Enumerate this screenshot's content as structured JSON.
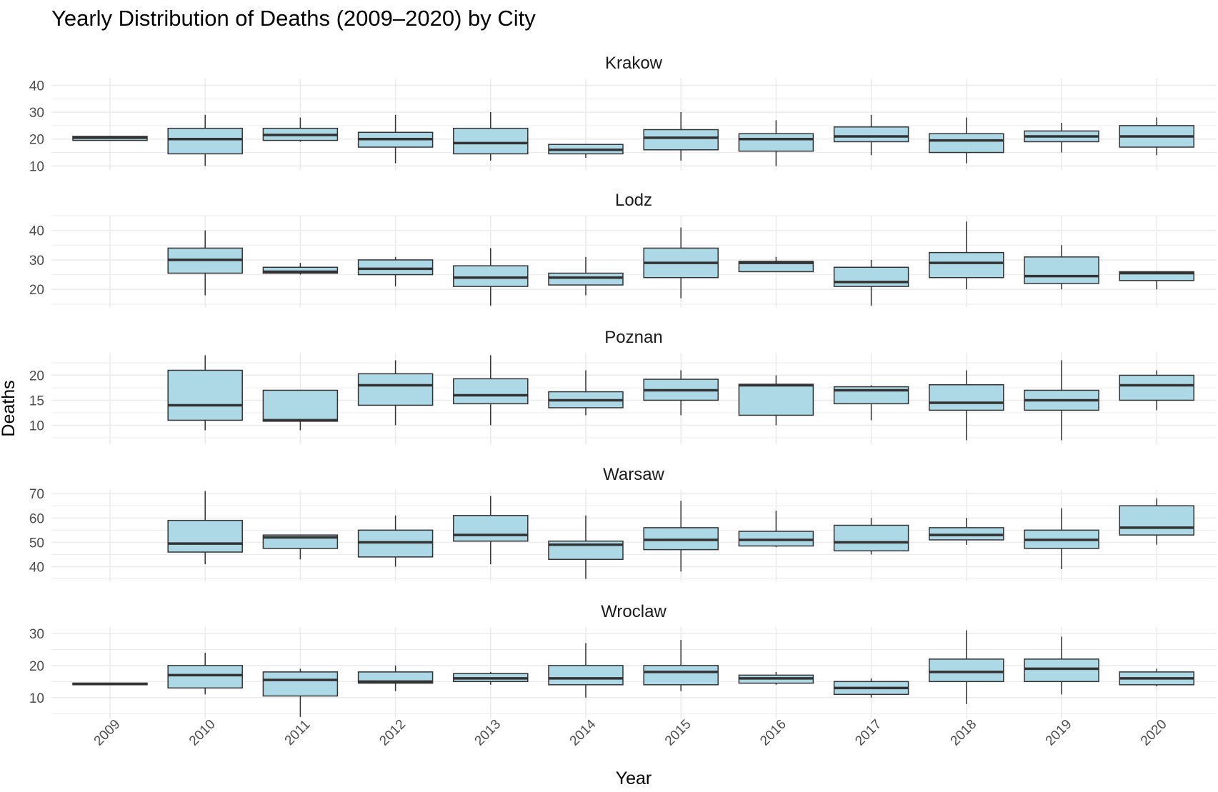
{
  "chart_data": {
    "type": "boxplot",
    "title": "Yearly Distribution of Deaths (2009–2020) by City",
    "xlabel": "Year",
    "ylabel": "Deaths",
    "categories": [
      "2009",
      "2010",
      "2011",
      "2012",
      "2013",
      "2014",
      "2015",
      "2016",
      "2017",
      "2018",
      "2019",
      "2020"
    ],
    "colors": {
      "box_fill": "#add8e6",
      "box_stroke": "#333333",
      "grid": "#ebebeb"
    },
    "grid": true,
    "facets": [
      {
        "name": "Krakow",
        "ylim": [
          8.5,
          42.5
        ],
        "yticks": [
          10,
          20,
          30,
          40
        ],
        "boxes": [
          {
            "year": "2009",
            "min": 19.5,
            "q1": 19.5,
            "median": 20.5,
            "q3": 21,
            "max": 21
          },
          {
            "year": "2010",
            "min": 10,
            "q1": 14.5,
            "median": 20,
            "q3": 24,
            "max": 29
          },
          {
            "year": "2011",
            "min": 19,
            "q1": 19.5,
            "median": 21.5,
            "q3": 24,
            "max": 28
          },
          {
            "year": "2012",
            "min": 11,
            "q1": 17,
            "median": 20,
            "q3": 22.5,
            "max": 29
          },
          {
            "year": "2013",
            "min": 12,
            "q1": 14.5,
            "median": 18.5,
            "q3": 24,
            "max": 30
          },
          {
            "year": "2014",
            "min": 13,
            "q1": 14.5,
            "median": 16,
            "q3": 18,
            "max": 18
          },
          {
            "year": "2015",
            "min": 12,
            "q1": 16,
            "median": 20.5,
            "q3": 23.5,
            "max": 30
          },
          {
            "year": "2016",
            "min": 10,
            "q1": 15.5,
            "median": 20,
            "q3": 22,
            "max": 27
          },
          {
            "year": "2017",
            "min": 14,
            "q1": 19,
            "median": 21,
            "q3": 24.5,
            "max": 29
          },
          {
            "year": "2018",
            "min": 11,
            "q1": 15,
            "median": 19.5,
            "q3": 22,
            "max": 28
          },
          {
            "year": "2019",
            "min": 15,
            "q1": 19,
            "median": 21,
            "q3": 23,
            "max": 26
          },
          {
            "year": "2020",
            "min": 14,
            "q1": 17,
            "median": 21,
            "q3": 25,
            "max": 28
          }
        ]
      },
      {
        "name": "Lodz",
        "ylim": [
          14,
          45
        ],
        "yticks": [
          20,
          30,
          40
        ],
        "boxes": [
          {
            "year": "2010",
            "min": 18,
            "q1": 25.5,
            "median": 30,
            "q3": 34,
            "max": 40
          },
          {
            "year": "2011",
            "min": 25,
            "q1": 25.5,
            "median": 26,
            "q3": 27.5,
            "max": 29
          },
          {
            "year": "2012",
            "min": 21,
            "q1": 25,
            "median": 27,
            "q3": 30,
            "max": 31
          },
          {
            "year": "2013",
            "min": 14.5,
            "q1": 21,
            "median": 24,
            "q3": 28,
            "max": 34
          },
          {
            "year": "2014",
            "min": 18,
            "q1": 21.5,
            "median": 24,
            "q3": 25.5,
            "max": 31
          },
          {
            "year": "2015",
            "min": 17,
            "q1": 24,
            "median": 29,
            "q3": 34,
            "max": 41
          },
          {
            "year": "2016",
            "min": 26,
            "q1": 26,
            "median": 29,
            "q3": 29.5,
            "max": 31
          },
          {
            "year": "2017",
            "min": 14.5,
            "q1": 21,
            "median": 22.5,
            "q3": 27.5,
            "max": 30
          },
          {
            "year": "2018",
            "min": 20,
            "q1": 24,
            "median": 29,
            "q3": 32.5,
            "max": 43
          },
          {
            "year": "2019",
            "min": 20,
            "q1": 22,
            "median": 24.5,
            "q3": 31,
            "max": 35
          },
          {
            "year": "2020",
            "min": 20,
            "q1": 23,
            "median": 25.5,
            "q3": 26,
            "max": 26
          }
        ]
      },
      {
        "name": "Poznan",
        "ylim": [
          6.2,
          24.5
        ],
        "yticks": [
          10,
          15,
          20
        ],
        "boxes": [
          {
            "year": "2010",
            "min": 9,
            "q1": 11,
            "median": 14,
            "q3": 21,
            "max": 24
          },
          {
            "year": "2011",
            "min": 9,
            "q1": 10.8,
            "median": 11,
            "q3": 17,
            "max": 17
          },
          {
            "year": "2012",
            "min": 10,
            "q1": 14,
            "median": 18,
            "q3": 20.3,
            "max": 23
          },
          {
            "year": "2013",
            "min": 10,
            "q1": 14.3,
            "median": 16,
            "q3": 19.3,
            "max": 24
          },
          {
            "year": "2014",
            "min": 12,
            "q1": 13.5,
            "median": 15,
            "q3": 16.7,
            "max": 21
          },
          {
            "year": "2015",
            "min": 12,
            "q1": 15,
            "median": 17,
            "q3": 19.2,
            "max": 21
          },
          {
            "year": "2016",
            "min": 10,
            "q1": 12,
            "median": 18,
            "q3": 18.2,
            "max": 20
          },
          {
            "year": "2017",
            "min": 11,
            "q1": 14.3,
            "median": 17,
            "q3": 17.7,
            "max": 18
          },
          {
            "year": "2018",
            "min": 7,
            "q1": 13,
            "median": 14.5,
            "q3": 18.1,
            "max": 21
          },
          {
            "year": "2019",
            "min": 7,
            "q1": 13,
            "median": 15,
            "q3": 17,
            "max": 23
          },
          {
            "year": "2020",
            "min": 13,
            "q1": 15,
            "median": 18,
            "q3": 20,
            "max": 21
          }
        ]
      },
      {
        "name": "Warsaw",
        "ylim": [
          34,
          71.5
        ],
        "yticks": [
          40,
          50,
          60,
          70
        ],
        "boxes": [
          {
            "year": "2010",
            "min": 41,
            "q1": 46,
            "median": 49.5,
            "q3": 59,
            "max": 71
          },
          {
            "year": "2011",
            "min": 43,
            "q1": 47.5,
            "median": 52,
            "q3": 53,
            "max": 53
          },
          {
            "year": "2012",
            "min": 40,
            "q1": 44,
            "median": 50,
            "q3": 55,
            "max": 61
          },
          {
            "year": "2013",
            "min": 41,
            "q1": 50.5,
            "median": 53,
            "q3": 61,
            "max": 69
          },
          {
            "year": "2014",
            "min": 35,
            "q1": 43,
            "median": 49,
            "q3": 50.5,
            "max": 61
          },
          {
            "year": "2015",
            "min": 38,
            "q1": 47,
            "median": 51,
            "q3": 56,
            "max": 67
          },
          {
            "year": "2016",
            "min": 48,
            "q1": 48.5,
            "median": 51,
            "q3": 54.5,
            "max": 63
          },
          {
            "year": "2017",
            "min": 45,
            "q1": 46.5,
            "median": 50,
            "q3": 57,
            "max": 60
          },
          {
            "year": "2018",
            "min": 49,
            "q1": 51,
            "median": 53,
            "q3": 56,
            "max": 60
          },
          {
            "year": "2019",
            "min": 39,
            "q1": 47.5,
            "median": 51,
            "q3": 55,
            "max": 64
          },
          {
            "year": "2020",
            "min": 49,
            "q1": 53,
            "median": 56,
            "q3": 65,
            "max": 68
          }
        ]
      },
      {
        "name": "Wroclaw",
        "ylim": [
          3.5,
          32
        ],
        "yticks": [
          10,
          20,
          30
        ],
        "boxes": [
          {
            "year": "2009",
            "min": 14,
            "q1": 14,
            "median": 14.3,
            "q3": 14.5,
            "max": 14.5
          },
          {
            "year": "2010",
            "min": 11,
            "q1": 13,
            "median": 17,
            "q3": 20,
            "max": 24
          },
          {
            "year": "2011",
            "min": 4,
            "q1": 10.5,
            "median": 15.5,
            "q3": 18,
            "max": 19
          },
          {
            "year": "2012",
            "min": 12,
            "q1": 14.5,
            "median": 15,
            "q3": 18,
            "max": 20
          },
          {
            "year": "2013",
            "min": 14,
            "q1": 15,
            "median": 16,
            "q3": 17.5,
            "max": 18
          },
          {
            "year": "2014",
            "min": 10,
            "q1": 14,
            "median": 16,
            "q3": 20,
            "max": 27
          },
          {
            "year": "2015",
            "min": 12,
            "q1": 14,
            "median": 18,
            "q3": 20,
            "max": 28
          },
          {
            "year": "2016",
            "min": 14,
            "q1": 14.5,
            "median": 16,
            "q3": 17,
            "max": 18
          },
          {
            "year": "2017",
            "min": 10,
            "q1": 11,
            "median": 13,
            "q3": 15,
            "max": 16
          },
          {
            "year": "2018",
            "min": 8,
            "q1": 15,
            "median": 18,
            "q3": 22,
            "max": 31
          },
          {
            "year": "2019",
            "min": 11,
            "q1": 15,
            "median": 19,
            "q3": 22,
            "max": 29
          },
          {
            "year": "2020",
            "min": 13.5,
            "q1": 14,
            "median": 16,
            "q3": 18,
            "max": 19
          }
        ]
      }
    ]
  }
}
